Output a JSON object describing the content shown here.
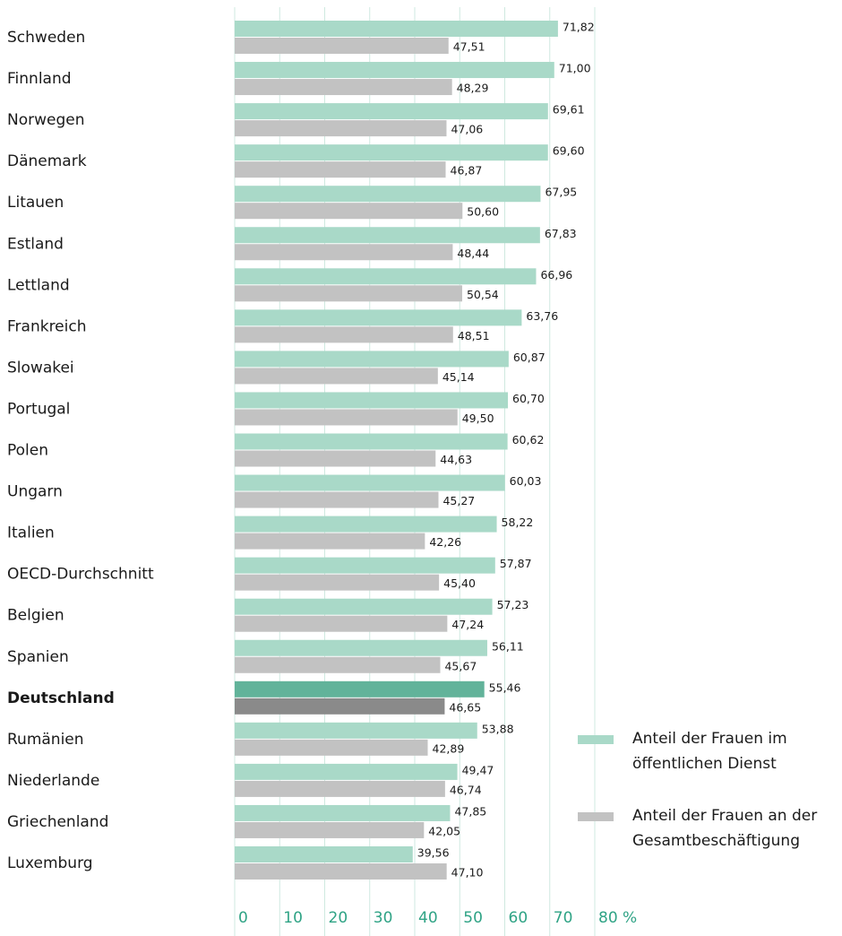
{
  "chart_data": {
    "type": "hbar",
    "categories": [
      "Schweden",
      "Finnland",
      "Norwegen",
      "Dänemark",
      "Litauen",
      "Estland",
      "Lettland",
      "Frankreich",
      "Slowakei",
      "Portugal",
      "Polen",
      "Ungarn",
      "Italien",
      "OECD-Durchschnitt",
      "Belgien",
      "Spanien",
      "Deutschland",
      "Rumänien",
      "Niederlande",
      "Griechenland",
      "Luxemburg"
    ],
    "series": [
      {
        "name": "Anteil der Frauen im öffentlichen Dienst",
        "color": "#a9d9c8",
        "highlight_color": "#62b39a",
        "values": [
          71.82,
          71.0,
          69.61,
          69.6,
          67.95,
          67.83,
          66.96,
          63.76,
          60.87,
          60.7,
          60.62,
          60.03,
          58.22,
          57.87,
          57.23,
          56.11,
          55.46,
          53.88,
          49.47,
          47.85,
          39.56
        ],
        "value_labels": [
          "71,82",
          "71,00",
          "69,61",
          "69,60",
          "67,95",
          "67,83",
          "66,96",
          "63,76",
          "60,87",
          "60,70",
          "60,62",
          "60,03",
          "58,22",
          "57,87",
          "57,23",
          "56,11",
          "55,46",
          "53,88",
          "49,47",
          "47,85",
          "39,56"
        ]
      },
      {
        "name": "Anteil der Frauen an der Gesamtbeschäftigung",
        "color": "#c2c2c2",
        "highlight_color": "#8a8a8a",
        "values": [
          47.51,
          48.29,
          47.06,
          46.87,
          50.6,
          48.44,
          50.54,
          48.51,
          45.14,
          49.5,
          44.63,
          45.27,
          42.26,
          45.4,
          47.24,
          45.67,
          46.65,
          42.89,
          46.74,
          42.05,
          47.1
        ],
        "value_labels": [
          "47,51",
          "48,29",
          "47,06",
          "46,87",
          "50,60",
          "48,44",
          "50,54",
          "48,51",
          "45,14",
          "49,50",
          "44,63",
          "45,27",
          "42,26",
          "45,40",
          "47,24",
          "45,67",
          "46,65",
          "42,89",
          "46,74",
          "42,05",
          "47,10"
        ]
      }
    ],
    "highlight": 16,
    "xlim": [
      0,
      80
    ],
    "xticks": [
      0,
      10,
      20,
      30,
      40,
      50,
      60,
      70,
      {
        "value": 80,
        "label": "80 %"
      }
    ],
    "grid": true,
    "legend": "lower right"
  }
}
